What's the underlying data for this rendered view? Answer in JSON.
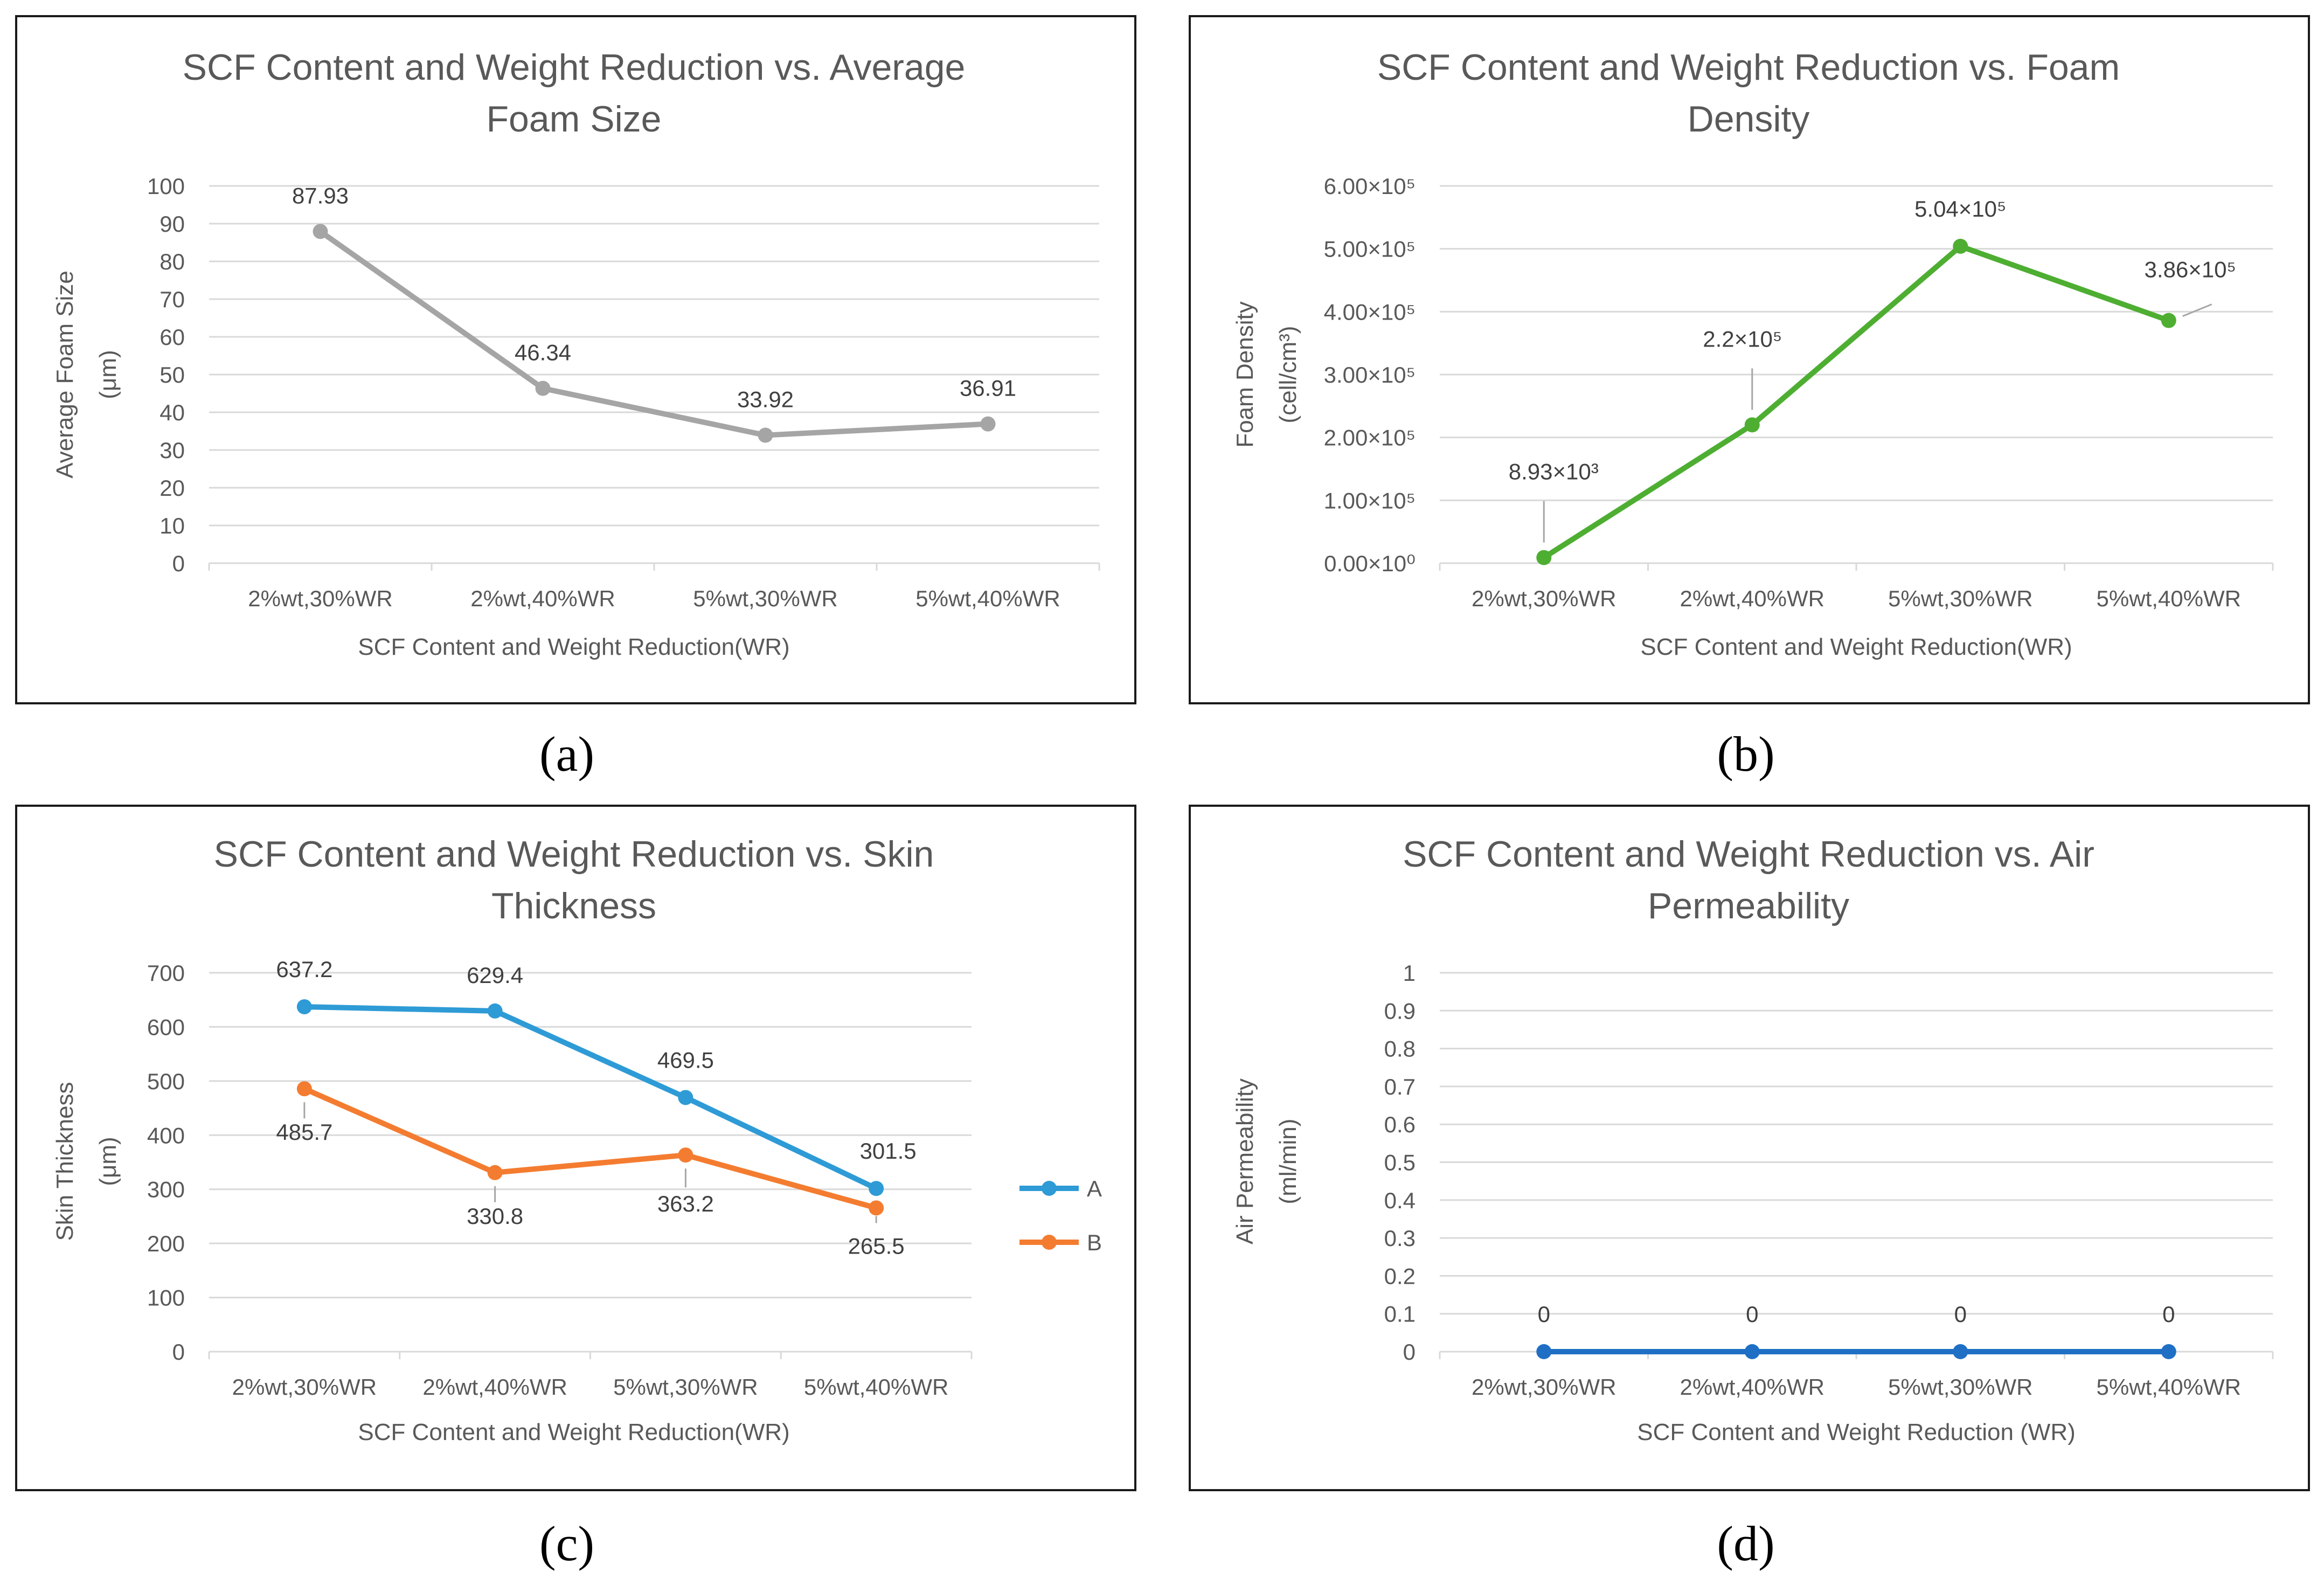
{
  "chart_data": [
    {
      "type": "line",
      "caption": "(a)",
      "title_lines": [
        "SCF Content and Weight Reduction vs. Average",
        "Foam Size"
      ],
      "xlabel": "SCF Content and Weight Reduction(WR)",
      "ylabel_lines": [
        "Average Foam Size",
        "(μm)"
      ],
      "categories": [
        "2%wt,30%WR",
        "2%wt,40%WR",
        "5%wt,30%WR",
        "5%wt,40%WR"
      ],
      "ylim": [
        0,
        100
      ],
      "yticks": [
        "0",
        "10",
        "20",
        "30",
        "40",
        "50",
        "60",
        "70",
        "80",
        "90",
        "100"
      ],
      "series": [
        {
          "name": "",
          "color": "#a5a5a5",
          "values": [
            87.93,
            46.34,
            33.92,
            36.91
          ],
          "labels": [
            "87.93",
            "46.34",
            "33.92",
            "36.91"
          ]
        }
      ]
    },
    {
      "type": "line",
      "caption": "(b)",
      "title_lines": [
        "SCF Content and Weight Reduction vs. Foam",
        "Density"
      ],
      "xlabel": "SCF Content and Weight Reduction(WR)",
      "ylabel_lines": [
        "Foam Density",
        "(cell/cm³)"
      ],
      "categories": [
        "2%wt,30%WR",
        "2%wt,40%WR",
        "5%wt,30%WR",
        "5%wt,40%WR"
      ],
      "ylim": [
        0,
        600000
      ],
      "yticks": [
        "0.00×10⁰",
        "1.00×10⁵",
        "2.00×10⁵",
        "3.00×10⁵",
        "4.00×10⁵",
        "5.00×10⁵",
        "6.00×10⁵"
      ],
      "series": [
        {
          "name": "",
          "color": "#4eae32",
          "values": [
            8930,
            220000,
            504000,
            386000
          ],
          "labels": [
            "8.93×10³",
            "2.2×10⁵",
            "5.04×10⁵",
            "3.86×10⁵"
          ]
        }
      ]
    },
    {
      "type": "line",
      "caption": "(c)",
      "title_lines": [
        "SCF Content and Weight Reduction vs. Skin",
        "Thickness"
      ],
      "xlabel": "SCF Content and Weight Reduction(WR)",
      "ylabel_lines": [
        "Skin Thickness",
        "(μm)"
      ],
      "categories": [
        "2%wt,30%WR",
        "2%wt,40%WR",
        "5%wt,30%WR",
        "5%wt,40%WR"
      ],
      "ylim": [
        0,
        700
      ],
      "yticks": [
        "0",
        "100",
        "200",
        "300",
        "400",
        "500",
        "600",
        "700"
      ],
      "legend": "right",
      "series": [
        {
          "name": "A",
          "color": "#2e9bd6",
          "values": [
            637.2,
            629.4,
            469.5,
            301.5
          ],
          "labels": [
            "637.2",
            "629.4",
            "469.5",
            "301.5"
          ]
        },
        {
          "name": "B",
          "color": "#f47c30",
          "values": [
            485.7,
            330.8,
            363.2,
            265.5
          ],
          "labels": [
            "485.7",
            "330.8",
            "363.2",
            "265.5"
          ]
        }
      ]
    },
    {
      "type": "line",
      "caption": "(d)",
      "title_lines": [
        "SCF Content and Weight Reduction vs. Air",
        "Permeability"
      ],
      "xlabel": "SCF Content and Weight Reduction (WR)",
      "ylabel_lines": [
        "Air Permeability",
        "(ml/min)"
      ],
      "categories": [
        "2%wt,30%WR",
        "2%wt,40%WR",
        "5%wt,30%WR",
        "5%wt,40%WR"
      ],
      "ylim": [
        0,
        1
      ],
      "yticks": [
        "0",
        "0.1",
        "0.2",
        "0.3",
        "0.4",
        "0.5",
        "0.6",
        "0.7",
        "0.8",
        "0.9",
        "1"
      ],
      "series": [
        {
          "name": "",
          "color": "#1f6fc5",
          "values": [
            0,
            0,
            0,
            0
          ],
          "labels": [
            "0",
            "0",
            "0",
            "0"
          ]
        }
      ]
    }
  ]
}
